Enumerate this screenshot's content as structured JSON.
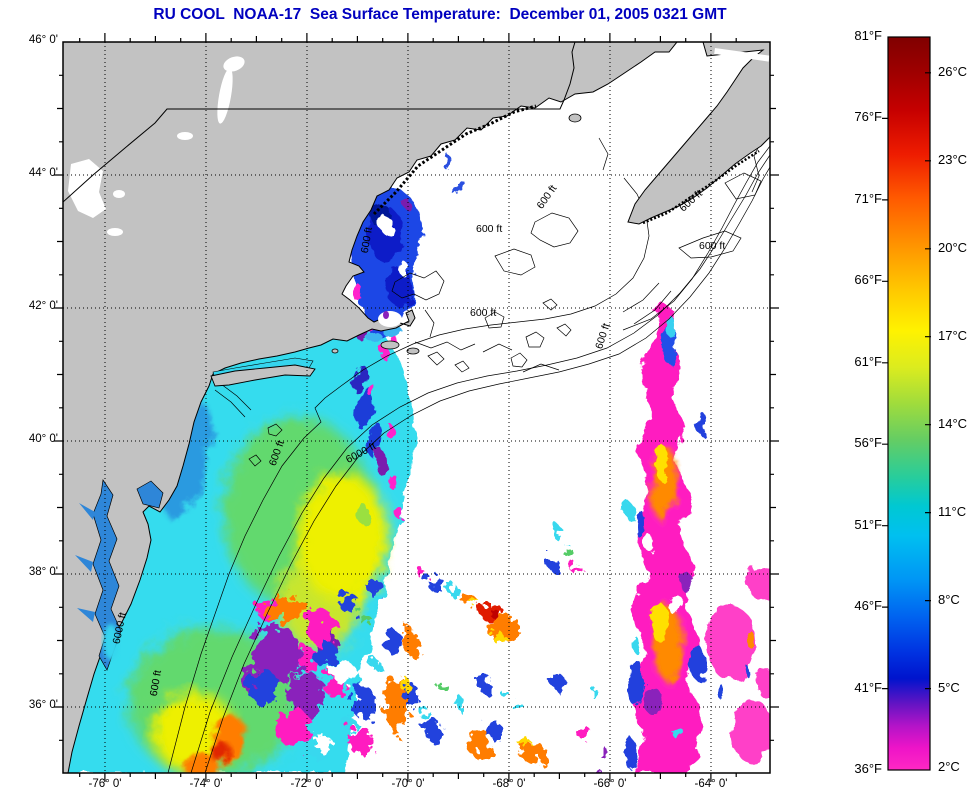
{
  "title": "RU COOL  NOAA-17  Sea Surface Temperature:  December 01, 2005 0321 GMT",
  "axes": {
    "x_labels": [
      "-76° 0'",
      "-74° 0'",
      "-72° 0'",
      "-70° 0'",
      "-68° 0'",
      "-66° 0'",
      "-64° 0'"
    ],
    "y_labels": [
      "46° 0'",
      "44° 0'",
      "42° 0'",
      "40° 0'",
      "38° 0'",
      "36° 0'"
    ]
  },
  "colorbar": {
    "f_labels": [
      "81°F",
      "76°F",
      "71°F",
      "66°F",
      "61°F",
      "56°F",
      "51°F",
      "46°F",
      "41°F",
      "36°F"
    ],
    "c_labels": [
      "26°C",
      "23°C",
      "20°C",
      "17°C",
      "14°C",
      "11°C",
      "8°C",
      "5°C",
      "2°C"
    ]
  },
  "contour_labels": {
    "ft600": "600 ft",
    "ft6000": "6000 ft"
  },
  "colors": {
    "title_blue": "#0000bf",
    "land_gray": "#c2c2c2",
    "colorbar_top": "#800000",
    "colorbar_bottom": "#ff28c3",
    "cold_magenta": "#ff1fc0",
    "cold_blue": "#1f46e6",
    "shelf_cyan": "#36dcee",
    "warm_orange": "#ff8a00"
  }
}
